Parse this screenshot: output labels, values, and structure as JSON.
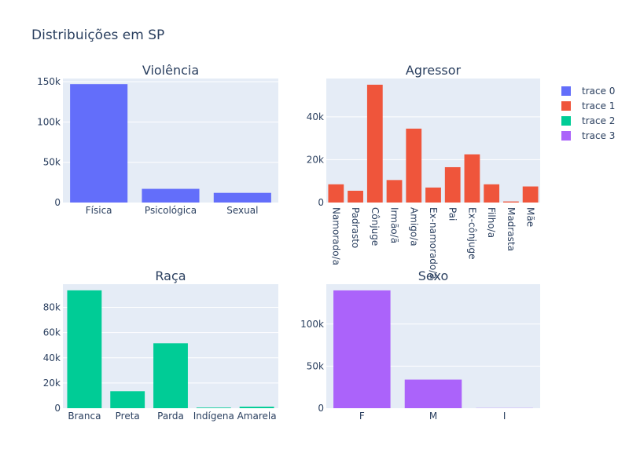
{
  "figure": {
    "title": "Distribuições em SP"
  },
  "legend": {
    "placement": "top-right",
    "items": [
      {
        "label": "trace 0",
        "color": "#636efa"
      },
      {
        "label": "trace 1",
        "color": "#EF553B"
      },
      {
        "label": "trace 2",
        "color": "#00cc96"
      },
      {
        "label": "trace 3",
        "color": "#ab63fa"
      }
    ]
  },
  "chart_data": [
    {
      "type": "bar",
      "title": "Violência",
      "series_name": "trace 0",
      "color": "#636efa",
      "categories": [
        "Física",
        "Psicológica",
        "Sexual"
      ],
      "values": [
        147000,
        17000,
        12000
      ],
      "ylim": [
        0,
        154000
      ],
      "yticks": [
        0,
        50000,
        100000,
        150000
      ],
      "ytick_labels": [
        "0",
        "50k",
        "100k",
        "150k"
      ],
      "xlabel_rotation": 0,
      "grid": true
    },
    {
      "type": "bar",
      "title": "Agressor",
      "series_name": "trace 1",
      "color": "#EF553B",
      "categories": [
        "Namorado/a",
        "Padrasto",
        "Cônjuge",
        "Irmão/ã",
        "Amigo/a",
        "Ex-namorado/a",
        "Pai",
        "Ex-cônjuge",
        "Filho/a",
        "Madrasta",
        "Mãe"
      ],
      "values": [
        8500,
        5500,
        55000,
        10500,
        34500,
        7000,
        16500,
        22500,
        8500,
        500,
        7500
      ],
      "ylim": [
        0,
        57900
      ],
      "yticks": [
        0,
        20000,
        40000
      ],
      "ytick_labels": [
        "0",
        "20k",
        "40k"
      ],
      "xlabel_rotation": 90,
      "grid": true
    },
    {
      "type": "bar",
      "title": "Raça",
      "series_name": "trace 2",
      "color": "#00cc96",
      "categories": [
        "Branca",
        "Preta",
        "Parda",
        "Indígena",
        "Amarela"
      ],
      "values": [
        93500,
        13500,
        51500,
        500,
        1200
      ],
      "ylim": [
        0,
        98400
      ],
      "yticks": [
        0,
        20000,
        40000,
        60000,
        80000
      ],
      "ytick_labels": [
        "0",
        "20k",
        "40k",
        "60k",
        "80k"
      ],
      "xlabel_rotation": 0,
      "grid": true
    },
    {
      "type": "bar",
      "title": "Sexo",
      "series_name": "trace 3",
      "color": "#ab63fa",
      "categories": [
        "F",
        "M",
        "I"
      ],
      "values": [
        140000,
        34000,
        200
      ],
      "ylim": [
        0,
        147400
      ],
      "yticks": [
        0,
        50000,
        100000
      ],
      "ytick_labels": [
        "0",
        "50k",
        "100k"
      ],
      "xlabel_rotation": 0,
      "grid": true
    }
  ]
}
